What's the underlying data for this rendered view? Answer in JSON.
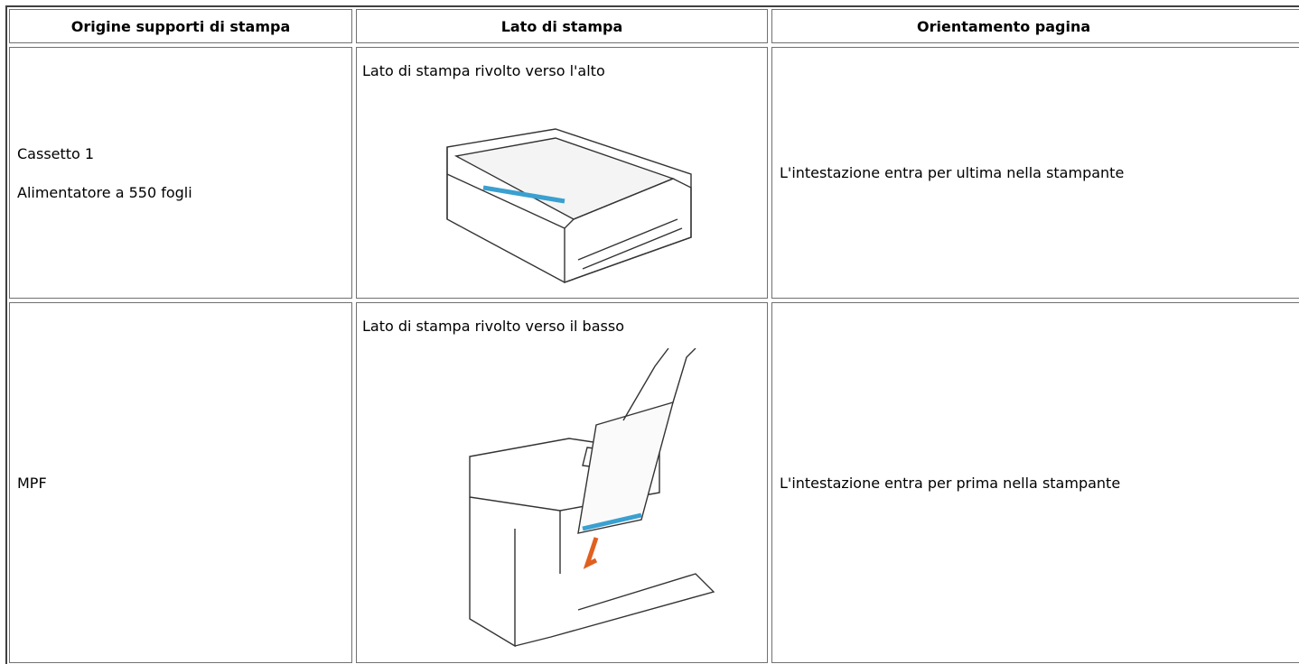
{
  "table": {
    "header": [
      "Origine supporti di stampa",
      "Lato di stampa",
      "Orientamento pagina"
    ],
    "rows": [
      {
        "source": [
          "Cassetto 1",
          "Alimentatore a 550 fogli"
        ],
        "side": "Lato di stampa rivolto verso l'alto",
        "orientation": "L'intestazione entra per ultima nella stampante"
      },
      {
        "source": [
          "MPF"
        ],
        "side": "Lato di stampa rivolto verso il basso",
        "orientation": "L'intestazione entra per prima nella stampante"
      }
    ]
  }
}
